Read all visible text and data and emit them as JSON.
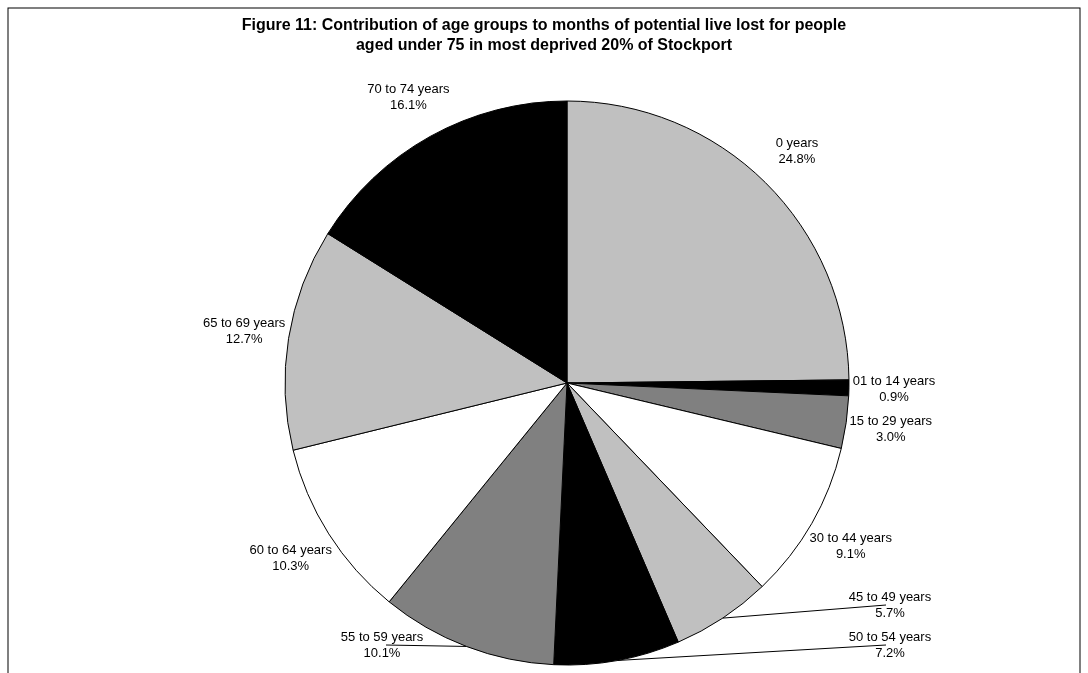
{
  "chart_data": {
    "type": "pie",
    "title": "Figure 11: Contribution of age groups to months of potential live lost for people aged under 75 in most deprived 20% of Stockport",
    "categories": [
      "0 years",
      "01 to 14 years",
      "15 to 29 years",
      "30 to 44 years",
      "45 to 49 years",
      "50 to 54 years",
      "55 to 59 years",
      "60 to 64 years",
      "65 to 69 years",
      "70 to 74 years"
    ],
    "values": [
      24.8,
      0.9,
      3.0,
      9.1,
      5.7,
      7.2,
      10.1,
      10.3,
      12.7,
      16.1
    ],
    "value_labels": [
      "24.8%",
      "0.9%",
      "3.0%",
      "9.1%",
      "5.7%",
      "7.2%",
      "10.1%",
      "10.3%",
      "12.7%",
      "16.1%"
    ],
    "colors": [
      "#c0c0c0",
      "#000000",
      "#808080",
      "#ffffff",
      "#c0c0c0",
      "#000000",
      "#808080",
      "#ffffff",
      "#c0c0c0",
      "#000000"
    ]
  }
}
